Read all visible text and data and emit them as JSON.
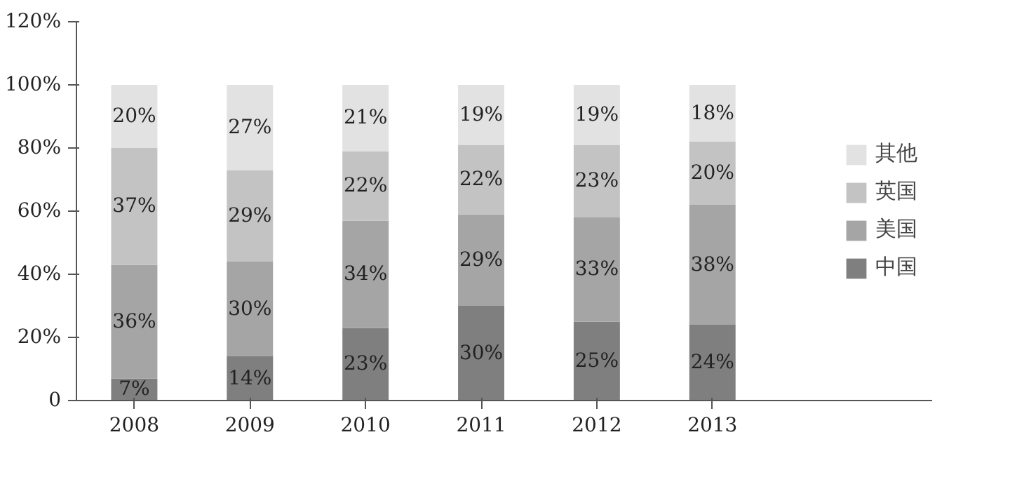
{
  "chart_data": {
    "type": "bar",
    "stacked": true,
    "categories": [
      "2008",
      "2009",
      "2010",
      "2011",
      "2012",
      "2013"
    ],
    "series": [
      {
        "name": "中国",
        "color": "#7f7f7f",
        "values": [
          7,
          14,
          23,
          30,
          25,
          24
        ],
        "value_labels": [
          "7%",
          "14%",
          "23%",
          "30%",
          "25%",
          "24%"
        ]
      },
      {
        "name": "美国",
        "color": "#a5a5a5",
        "values": [
          36,
          30,
          34,
          29,
          33,
          38
        ],
        "value_labels": [
          "36%",
          "30%",
          "34%",
          "29%",
          "33%",
          "38%"
        ]
      },
      {
        "name": "英国",
        "color": "#c3c3c3",
        "values": [
          37,
          29,
          22,
          22,
          23,
          20
        ],
        "value_labels": [
          "37%",
          "29%",
          "22%",
          "22%",
          "23%",
          "20%"
        ]
      },
      {
        "name": "其他",
        "color": "#e2e2e2",
        "values": [
          20,
          27,
          21,
          19,
          19,
          18
        ],
        "value_labels": [
          "20%",
          "27%",
          "21%",
          "19%",
          "19%",
          "18%"
        ]
      }
    ],
    "ylim": [
      0,
      120
    ],
    "yticks": [
      {
        "value": 0,
        "label": "0"
      },
      {
        "value": 20,
        "label": "20%"
      },
      {
        "value": 40,
        "label": "40%"
      },
      {
        "value": 60,
        "label": "60%"
      },
      {
        "value": 80,
        "label": "80%"
      },
      {
        "value": 100,
        "label": "100%"
      },
      {
        "value": 120,
        "label": "120%"
      }
    ],
    "grid": false,
    "legend": "right"
  }
}
